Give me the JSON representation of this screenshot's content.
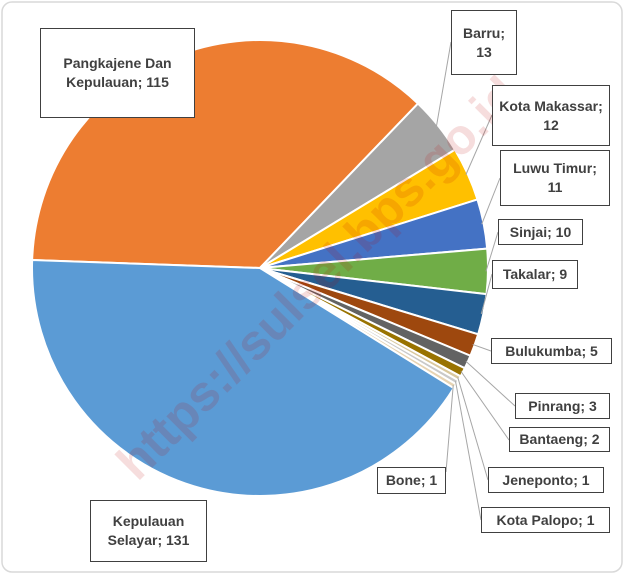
{
  "chart_data": {
    "type": "pie",
    "categories": [
      "Pangkajene Dan Kepulauan",
      "Barru",
      "Kota Makassar",
      "Luwu Timur",
      "Sinjai",
      "Takalar",
      "Bulukumba",
      "Pinrang",
      "Bantaeng",
      "Jeneponto",
      "Kota Palopo",
      "Bone",
      "Kepulauan Selayar"
    ],
    "values": [
      115,
      13,
      12,
      11,
      10,
      9,
      5,
      3,
      2,
      1,
      1,
      1,
      131
    ],
    "colors": [
      "#ed7d31",
      "#a5a5a5",
      "#ffc000",
      "#4472c4",
      "#70ad47",
      "#255e91",
      "#9e480e",
      "#636363",
      "#997300",
      "#d9c89e",
      "#c9c9c9",
      "#e6d3b3",
      "#5b9bd5"
    ],
    "label_separator": "; ",
    "watermark": "https://sulsel.bps.go.id"
  }
}
